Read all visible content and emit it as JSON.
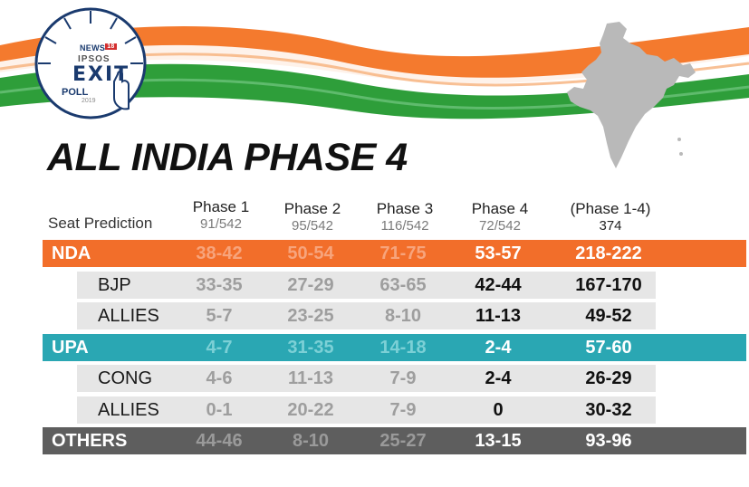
{
  "brand": {
    "channel": "NEWS",
    "channel_number": "18",
    "partner": "IPSOS",
    "exit_word": "EXIT",
    "poll_word": "POLL",
    "year": "2019"
  },
  "colors": {
    "saffron": "#f26e2a",
    "green": "#2e9e3a",
    "nda": "#f26e2a",
    "upa": "#2aa7b3",
    "others": "#5e5e5e",
    "sub_row": "#e6e6e6"
  },
  "title": "ALL INDIA PHASE 4",
  "table": {
    "row_header_label": "Seat Prediction",
    "columns": [
      {
        "name": "Phase 1",
        "sub": "91/542"
      },
      {
        "name": "Phase 2",
        "sub": "95/542"
      },
      {
        "name": "Phase 3",
        "sub": "116/542"
      },
      {
        "name": "Phase 4",
        "sub": "72/542"
      },
      {
        "name": "(Phase 1-4)",
        "sub": "374"
      }
    ],
    "rows": [
      {
        "label": "NDA",
        "type": "party",
        "values": [
          "38-42",
          "50-54",
          "71-75",
          "53-57",
          "218-222"
        ]
      },
      {
        "label": "BJP",
        "type": "sub",
        "values": [
          "33-35",
          "27-29",
          "63-65",
          "42-44",
          "167-170"
        ]
      },
      {
        "label": "ALLIES",
        "type": "sub",
        "values": [
          "5-7",
          "23-25",
          "8-10",
          "11-13",
          "49-52"
        ]
      },
      {
        "label": "UPA",
        "type": "party",
        "values": [
          "4-7",
          "31-35",
          "14-18",
          "2-4",
          "57-60"
        ]
      },
      {
        "label": "CONG",
        "type": "sub",
        "values": [
          "4-6",
          "11-13",
          "7-9",
          "2-4",
          "26-29"
        ]
      },
      {
        "label": "ALLIES",
        "type": "sub",
        "values": [
          "0-1",
          "20-22",
          "7-9",
          "0",
          "30-32"
        ]
      },
      {
        "label": "OTHERS",
        "type": "party",
        "values": [
          "44-46",
          "8-10",
          "25-27",
          "13-15",
          "93-96"
        ]
      }
    ]
  }
}
